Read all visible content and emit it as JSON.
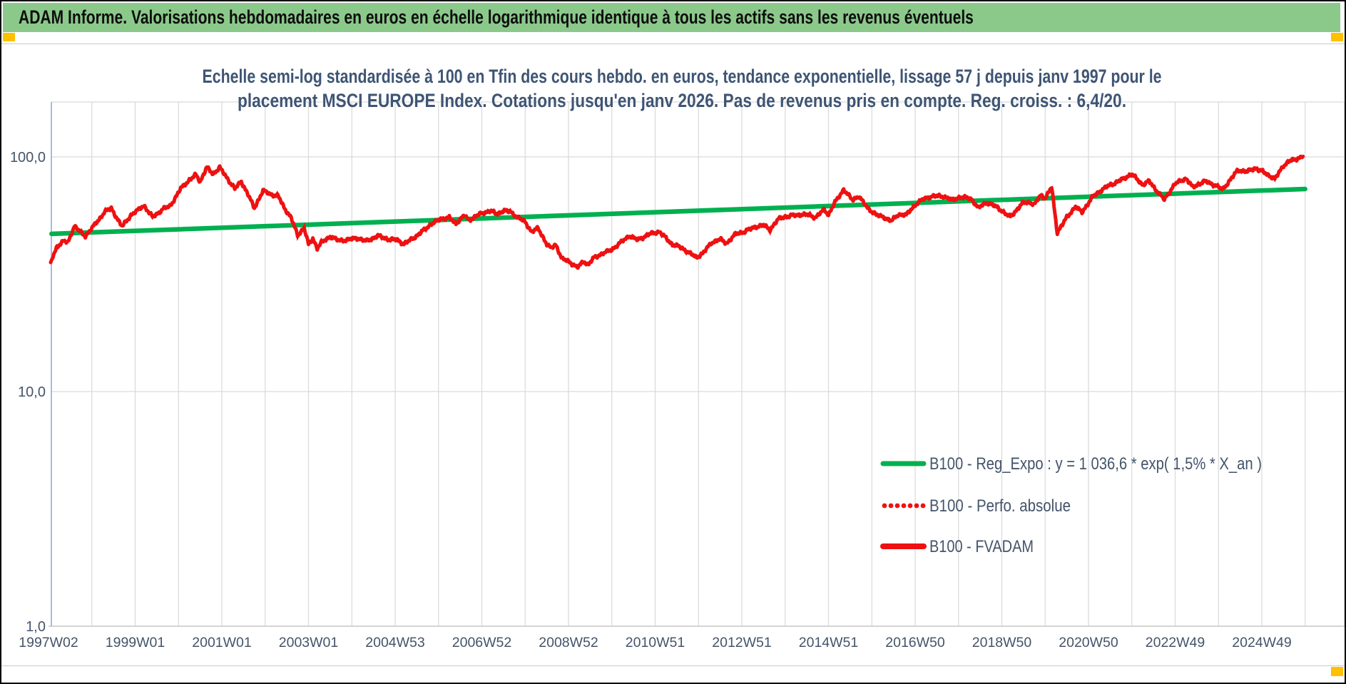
{
  "banner": {
    "text": "ADAM Informe. Valorisations hebdomadaires en euros en échelle logarithmique identique à tous les actifs sans les revenus éventuels",
    "bg_color": "#8BC98B",
    "corner_marker_color": "#FFC000"
  },
  "chart": {
    "title_line1": "Echelle semi-log standardisée à 100 en Tfin des cours hebdo. en euros, tendance exponentielle, lissage 57 j depuis janv 1997 pour le",
    "title_line2": "placement MSCI EUROPE Index. Cotations jusqu'en janv 2026. Pas de revenus pris en compte. Reg. croiss. : 6,4/20.",
    "title_color": "#3E5574"
  },
  "chart_data": {
    "type": "line",
    "title": "Echelle semi-log standardisée à 100 en Tfin des cours hebdo. en euros, tendance exponentielle, lissage 57 j depuis janv 1997 pour le placement MSCI EUROPE Index. Cotations jusqu'en janv 2026. Pas de revenus pris en compte. Reg. croiss. : 6,4/20.",
    "x_axis": {
      "type": "category-weeks",
      "tick_labels": [
        "1997W02",
        "1999W01",
        "2001W01",
        "2003W01",
        "2004W53",
        "2006W52",
        "2008W52",
        "2010W51",
        "2012W51",
        "2014W51",
        "2016W50",
        "2018W50",
        "2020W50",
        "2022W49",
        "2024W49"
      ],
      "gridlines": "yearly"
    },
    "y_axis": {
      "scale": "log10",
      "tick_labels": [
        "100,0",
        "10,0",
        "1,0"
      ],
      "tick_values": [
        100,
        10,
        1
      ],
      "range_approx": [
        0.95,
        170
      ]
    },
    "legend": {
      "position": "inside-lower-right",
      "entries": [
        {
          "label": "B100 - Reg_Expo : y = 1 036,6 * exp( 1,5% *  X_an )",
          "marker": "solid-line",
          "color": "#00B050"
        },
        {
          "label": "B100 - Perfo. absolue",
          "marker": "dotted-line",
          "color": "#EE1111"
        },
        {
          "label": "B100 - FVADAM",
          "marker": "solid-line-thick",
          "color": "#EE1111"
        }
      ]
    },
    "series": [
      {
        "name": "B100 - Reg_Expo : y = 1 036,6 * exp( 1,5% *  X_an )",
        "color": "#00B050",
        "style": "solid",
        "shape": "exponential-trend (straight on log scale)",
        "points": [
          [
            1997.07,
            47.0
          ],
          [
            2026.0,
            73.0
          ]
        ]
      },
      {
        "name": "B100 - Perfo. absolue",
        "color": "#EE1111",
        "style": "dotted",
        "note": "coincides with B100 - FVADAM (hidden beneath it, only visible in legend)",
        "points": []
      },
      {
        "name": "B100 - FVADAM",
        "color": "#EE1111",
        "style": "solid",
        "points": [
          [
            1997.05,
            35.5
          ],
          [
            1997.2,
            41.5
          ],
          [
            1997.35,
            44
          ],
          [
            1997.45,
            43
          ],
          [
            1997.6,
            51
          ],
          [
            1997.75,
            47.5
          ],
          [
            1997.85,
            45.9
          ],
          [
            1998,
            49.8
          ],
          [
            1998.15,
            53.5
          ],
          [
            1998.3,
            58.6
          ],
          [
            1998.45,
            60.3
          ],
          [
            1998.6,
            54
          ],
          [
            1998.7,
            50.5
          ],
          [
            1998.9,
            56.4
          ],
          [
            1999.1,
            60
          ],
          [
            1999.2,
            62.1
          ],
          [
            1999.4,
            55.4
          ],
          [
            1999.55,
            58
          ],
          [
            1999.65,
            60.3
          ],
          [
            1999.8,
            61.5
          ],
          [
            1999.95,
            68
          ],
          [
            2000.05,
            73.3
          ],
          [
            2000.25,
            79.7
          ],
          [
            2000.4,
            83.9
          ],
          [
            2000.5,
            78.4
          ],
          [
            2000.65,
            90.3
          ],
          [
            2000.8,
            84.4
          ],
          [
            2000.95,
            90.3
          ],
          [
            2001.15,
            79.7
          ],
          [
            2001.3,
            73.3
          ],
          [
            2001.45,
            78.4
          ],
          [
            2001.6,
            69.5
          ],
          [
            2001.75,
            60.5
          ],
          [
            2001.95,
            71.8
          ],
          [
            2002.15,
            69
          ],
          [
            2002.3,
            68.2
          ],
          [
            2002.45,
            60.3
          ],
          [
            2002.6,
            55
          ],
          [
            2002.75,
            46.4
          ],
          [
            2002.9,
            49.8
          ],
          [
            2003,
            42.3
          ],
          [
            2003.1,
            45
          ],
          [
            2003.2,
            40.8
          ],
          [
            2003.3,
            43.1
          ],
          [
            2003.5,
            45.8
          ],
          [
            2003.7,
            44
          ],
          [
            2003.9,
            44.3
          ],
          [
            2004.1,
            45.1
          ],
          [
            2004.35,
            43.8
          ],
          [
            2004.6,
            46.1
          ],
          [
            2004.85,
            44.5
          ],
          [
            2005.05,
            44.3
          ],
          [
            2005.2,
            42.5
          ],
          [
            2005.5,
            46.1
          ],
          [
            2005.8,
            51.2
          ],
          [
            2006.05,
            54.5
          ],
          [
            2006.25,
            55.1
          ],
          [
            2006.4,
            52
          ],
          [
            2006.6,
            56.4
          ],
          [
            2006.7,
            53.7
          ],
          [
            2006.95,
            57
          ],
          [
            2007.2,
            59
          ],
          [
            2007.35,
            57
          ],
          [
            2007.5,
            59
          ],
          [
            2007.65,
            58.6
          ],
          [
            2007.85,
            54.9
          ],
          [
            2008,
            52.9
          ],
          [
            2008.15,
            47.8
          ],
          [
            2008.3,
            49.8
          ],
          [
            2008.5,
            42.3
          ],
          [
            2008.6,
            40.8
          ],
          [
            2008.7,
            42.5
          ],
          [
            2008.85,
            36.7
          ],
          [
            2009,
            36
          ],
          [
            2009.2,
            33.7
          ],
          [
            2009.35,
            36
          ],
          [
            2009.45,
            34.6
          ],
          [
            2009.6,
            37.4
          ],
          [
            2009.8,
            38.8
          ],
          [
            2010,
            40.3
          ],
          [
            2010.2,
            43.1
          ],
          [
            2010.4,
            46.1
          ],
          [
            2010.6,
            44.3
          ],
          [
            2010.9,
            47.1
          ],
          [
            2011.1,
            48
          ],
          [
            2011.4,
            42.3
          ],
          [
            2011.55,
            41.5
          ],
          [
            2011.7,
            40
          ],
          [
            2011.95,
            37.3
          ],
          [
            2012.1,
            38.8
          ],
          [
            2012.3,
            43.1
          ],
          [
            2012.5,
            44.6
          ],
          [
            2012.65,
            42.8
          ],
          [
            2012.85,
            46.8
          ],
          [
            2013.05,
            48
          ],
          [
            2013.3,
            50.2
          ],
          [
            2013.5,
            51.2
          ],
          [
            2013.65,
            49
          ],
          [
            2013.85,
            54.5
          ],
          [
            2014,
            55.6
          ],
          [
            2014.3,
            56.7
          ],
          [
            2014.55,
            56.7
          ],
          [
            2014.7,
            55.1
          ],
          [
            2014.9,
            59.7
          ],
          [
            2015,
            56.7
          ],
          [
            2015.15,
            64
          ],
          [
            2015.35,
            72.6
          ],
          [
            2015.55,
            65.5
          ],
          [
            2015.7,
            68
          ],
          [
            2015.9,
            60.6
          ],
          [
            2016.1,
            56.7
          ],
          [
            2016.3,
            55.1
          ],
          [
            2016.45,
            53.3
          ],
          [
            2016.6,
            56.7
          ],
          [
            2016.8,
            56.7
          ],
          [
            2017,
            62.5
          ],
          [
            2017.2,
            66.3
          ],
          [
            2017.4,
            68
          ],
          [
            2017.65,
            68
          ],
          [
            2017.85,
            65.5
          ],
          [
            2018.05,
            67.5
          ],
          [
            2018.3,
            66.3
          ],
          [
            2018.45,
            60.6
          ],
          [
            2018.65,
            64
          ],
          [
            2018.9,
            61
          ],
          [
            2019.1,
            56.9
          ],
          [
            2019.2,
            55.6
          ],
          [
            2019.35,
            59.7
          ],
          [
            2019.5,
            64
          ],
          [
            2019.65,
            64
          ],
          [
            2019.75,
            62.5
          ],
          [
            2019.9,
            68.9
          ],
          [
            2020,
            66.5
          ],
          [
            2020.15,
            74.4
          ],
          [
            2020.28,
            47.6
          ],
          [
            2020.5,
            55.3
          ],
          [
            2020.7,
            61.4
          ],
          [
            2020.85,
            58.1
          ],
          [
            2021.1,
            67.8
          ],
          [
            2021.4,
            74.4
          ],
          [
            2021.7,
            78.8
          ],
          [
            2022,
            84.5
          ],
          [
            2022.25,
            76.1
          ],
          [
            2022.4,
            78.8
          ],
          [
            2022.55,
            72.7
          ],
          [
            2022.75,
            65.8
          ],
          [
            2023,
            77
          ],
          [
            2023.25,
            80.9
          ],
          [
            2023.4,
            74.4
          ],
          [
            2023.7,
            78.8
          ],
          [
            2023.9,
            76
          ],
          [
            2024.1,
            72.7
          ],
          [
            2024.45,
            88
          ],
          [
            2024.65,
            86.5
          ],
          [
            2024.85,
            89.5
          ],
          [
            2025,
            87
          ],
          [
            2025.3,
            80.5
          ],
          [
            2025.5,
            91.9
          ],
          [
            2025.65,
            96.1
          ],
          [
            2025.8,
            98
          ],
          [
            2025.95,
            100.5
          ]
        ]
      }
    ]
  }
}
